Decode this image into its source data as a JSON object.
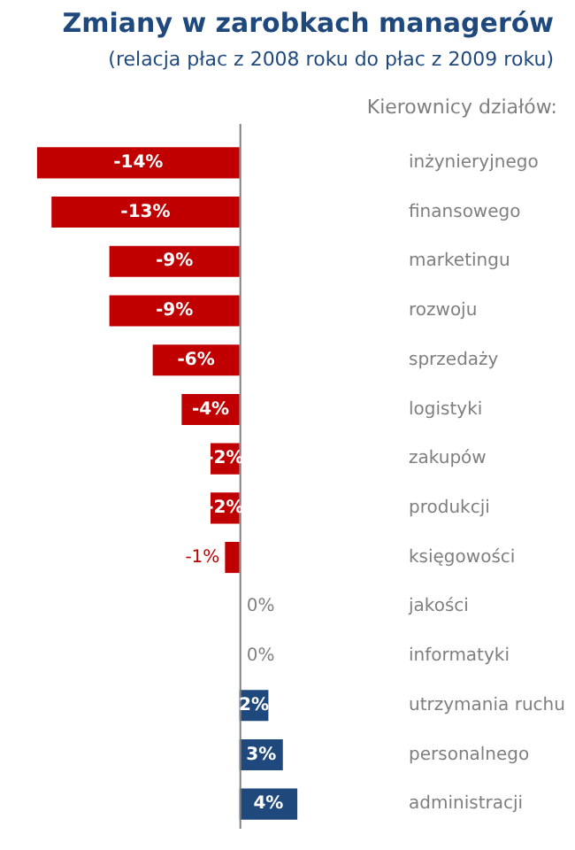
{
  "chart_data": {
    "type": "bar",
    "orientation": "horizontal",
    "title": "Zmiany w zarobkach managerów",
    "subtitle": "(relacja płac z 2008 roku do płac z 2009 roku)",
    "ylabel": "Kierownicy działów:",
    "categories": [
      "inżynieryjnego",
      "finansowego",
      "marketingu",
      "rozwoju",
      "sprzedaży",
      "logistyki",
      "zakupów",
      "produkcji",
      "księgowości",
      "jakości",
      "informatyki",
      "utrzymania ruchu",
      "personalnego",
      "administracji"
    ],
    "values": [
      -14,
      -13,
      -9,
      -9,
      -6,
      -4,
      -2,
      -2,
      -1,
      0,
      0,
      2,
      3,
      4
    ],
    "value_labels": [
      "-14%",
      "-13%",
      "-9%",
      "-9%",
      "-6%",
      "-4%",
      "-2%",
      "-2%",
      "-1%",
      "0%",
      "0%",
      "2%",
      "3%",
      "4%"
    ],
    "colors": [
      "#c00000",
      "#c00000",
      "#c00000",
      "#c00000",
      "#c00000",
      "#c00000",
      "#c00000",
      "#c00000",
      "#c00000",
      "#c00000",
      "#c00000",
      "#1f497d",
      "#1f497d",
      "#1f497d"
    ],
    "legend": false
  }
}
